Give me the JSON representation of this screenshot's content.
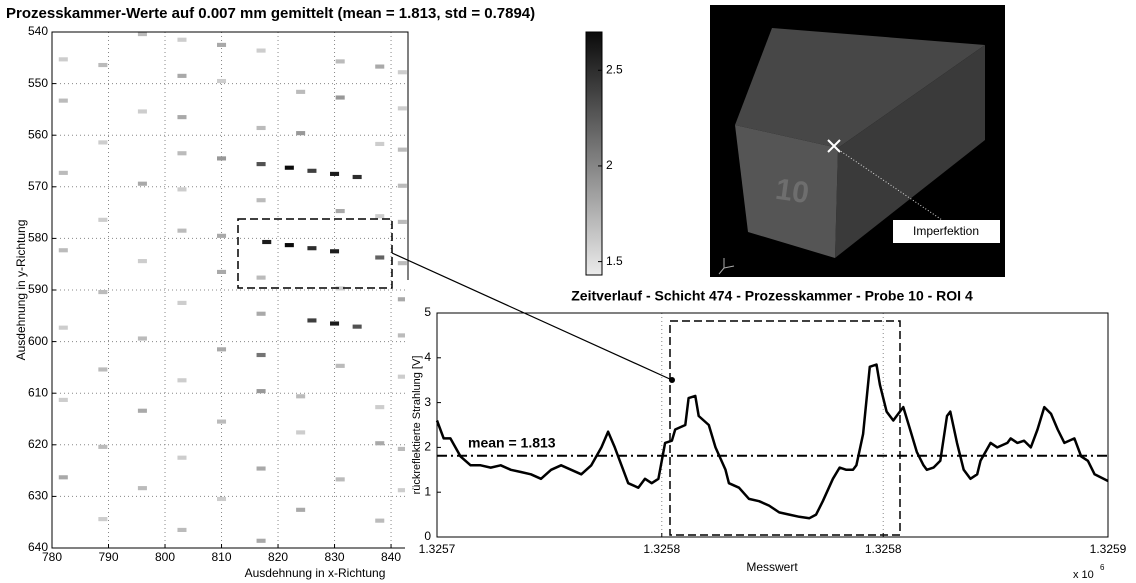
{
  "chart_data": [
    {
      "type": "heatmap",
      "title": "Prozesskammer-Werte auf 0.007 mm gemittelt (mean = 1.813, std = 0.7894)",
      "x_label": "Ausdehnung in x-Richtung",
      "y_label": "Ausdehnung in y-Richtung",
      "xlim": [
        780,
        843
      ],
      "xticks": [
        780,
        790,
        800,
        810,
        820,
        830,
        840
      ],
      "ylim": [
        540,
        640
      ],
      "yticks": [
        540,
        550,
        560,
        570,
        580,
        590,
        600,
        610,
        620,
        630,
        640
      ],
      "y_reversed": true,
      "grid": true,
      "clim": [
        1.43,
        2.7
      ],
      "colorbar_ticks": [
        1.5,
        2,
        2.5
      ],
      "x": [
        796,
        803,
        810,
        817,
        831,
        838,
        842,
        782,
        789,
        803,
        810,
        824,
        831,
        842,
        782,
        796,
        803,
        817,
        824,
        838,
        842,
        789,
        803,
        810,
        817,
        822,
        826,
        830,
        834,
        842,
        782,
        796,
        803,
        817,
        831,
        838,
        842,
        789,
        803,
        810,
        818,
        822,
        826,
        830,
        838,
        842,
        782,
        796,
        810,
        817,
        831,
        842,
        789,
        803,
        817,
        826,
        830,
        834,
        842,
        782,
        796,
        810,
        817,
        831,
        842,
        789,
        803,
        817,
        824,
        838,
        782,
        796,
        810,
        824,
        838,
        842,
        789,
        803,
        817,
        831,
        842,
        782,
        796,
        810,
        824,
        838,
        789,
        803,
        817
      ],
      "y": [
        540.4,
        541.5,
        542.5,
        543.6,
        545.7,
        546.7,
        547.8,
        545.3,
        546.4,
        548.5,
        549.5,
        551.6,
        552.7,
        554.8,
        553.3,
        555.4,
        556.5,
        558.6,
        559.6,
        561.7,
        562.8,
        561.4,
        563.5,
        564.5,
        565.6,
        566.3,
        566.9,
        567.5,
        568.1,
        569.8,
        567.3,
        569.4,
        570.5,
        572.6,
        574.7,
        575.7,
        576.8,
        576.4,
        578.5,
        579.5,
        580.7,
        581.3,
        581.9,
        582.5,
        583.7,
        584.8,
        582.3,
        584.4,
        586.5,
        587.6,
        589.7,
        591.8,
        590.4,
        592.5,
        594.6,
        595.9,
        596.5,
        597.1,
        598.8,
        597.3,
        599.4,
        601.5,
        602.6,
        604.7,
        606.8,
        605.4,
        607.5,
        609.6,
        610.6,
        612.7,
        611.3,
        613.4,
        615.5,
        617.6,
        619.7,
        620.8,
        620.4,
        622.5,
        624.6,
        626.7,
        628.8,
        626.3,
        628.4,
        630.5,
        632.6,
        634.7,
        634.4,
        636.5,
        638.6
      ],
      "values": [
        1.7,
        1.6,
        1.8,
        1.6,
        1.7,
        1.8,
        1.6,
        1.6,
        1.7,
        1.8,
        1.6,
        1.7,
        1.9,
        1.6,
        1.7,
        1.6,
        1.8,
        1.7,
        1.9,
        1.6,
        1.7,
        1.6,
        1.7,
        1.9,
        2.3,
        2.7,
        2.4,
        2.6,
        2.5,
        1.7,
        1.7,
        1.8,
        1.6,
        1.7,
        1.8,
        1.6,
        1.7,
        1.6,
        1.7,
        1.8,
        2.6,
        2.7,
        2.5,
        2.6,
        2.2,
        1.7,
        1.7,
        1.6,
        1.8,
        1.7,
        1.6,
        1.8,
        1.7,
        1.6,
        1.8,
        2.4,
        2.6,
        2.3,
        1.7,
        1.6,
        1.7,
        1.8,
        2.1,
        1.7,
        1.6,
        1.7,
        1.6,
        1.9,
        1.7,
        1.6,
        1.6,
        1.8,
        1.7,
        1.6,
        1.8,
        1.7,
        1.7,
        1.6,
        1.8,
        1.7,
        1.6,
        1.8,
        1.7,
        1.6,
        1.8,
        1.7,
        1.6,
        1.7,
        1.8
      ]
    },
    {
      "type": "line",
      "title": "Zeitverlauf - Schicht 474 - Prozesskammer - Probe 10 - ROI 4",
      "x_label": "Messwert",
      "y_label": "rückreflektierte Strahlung [V]",
      "x_exponent": {
        "base": "x 10",
        "power": "6"
      },
      "xlim": [
        1325700,
        1325900
      ],
      "xticks": [
        {
          "value": 1325700,
          "label": "1.3257"
        },
        {
          "value": 1325767,
          "label": "1.3258"
        },
        {
          "value": 1325833,
          "label": "1.3258"
        },
        {
          "value": 1325900,
          "label": "1.3259"
        }
      ],
      "ylim": [
        0,
        5
      ],
      "yticks": [
        0,
        1,
        2,
        3,
        4,
        5
      ],
      "xgrid": true,
      "color": "#000000",
      "mean": 1.813,
      "mean_label": "mean = 1.813",
      "x": [
        1325700,
        1325702,
        1325704,
        1325707,
        1325710,
        1325713,
        1325716,
        1325719,
        1325722,
        1325725,
        1325728,
        1325731,
        1325734,
        1325737,
        1325740,
        1325743,
        1325746,
        1325749,
        1325751,
        1325753,
        1325755,
        1325757,
        1325760,
        1325762,
        1325764,
        1325766,
        1325768,
        1325770,
        1325771,
        1325774,
        1325775,
        1325777,
        1325778,
        1325781,
        1325783,
        1325786,
        1325787,
        1325790,
        1325793,
        1325796,
        1325799,
        1325802,
        1325805,
        1325808,
        1325811,
        1325813,
        1325815,
        1325818,
        1325820,
        1325822,
        1325824,
        1325825,
        1325827,
        1325829,
        1325831,
        1325832,
        1325834,
        1325836,
        1325837,
        1325839,
        1325841,
        1325843,
        1325845,
        1325846,
        1325848,
        1325850,
        1325852,
        1325853,
        1325855,
        1325857,
        1325859,
        1325861,
        1325862,
        1325865,
        1325867,
        1325870,
        1325871,
        1325873,
        1325875,
        1325877,
        1325879,
        1325881,
        1325883,
        1325885,
        1325887,
        1325890,
        1325892,
        1325894,
        1325896,
        1325900
      ],
      "values": [
        2.6,
        2.2,
        2.2,
        1.8,
        1.6,
        1.6,
        1.55,
        1.6,
        1.5,
        1.45,
        1.4,
        1.3,
        1.5,
        1.6,
        1.5,
        1.4,
        1.6,
        2.0,
        2.35,
        2.0,
        1.6,
        1.2,
        1.1,
        1.3,
        1.2,
        1.3,
        2.1,
        2.15,
        2.4,
        2.5,
        3.1,
        3.15,
        2.7,
        2.5,
        2.0,
        1.5,
        1.2,
        1.1,
        0.85,
        0.8,
        0.7,
        0.55,
        0.5,
        0.45,
        0.42,
        0.5,
        0.8,
        1.3,
        1.55,
        1.5,
        1.5,
        1.6,
        2.3,
        3.8,
        3.85,
        3.4,
        2.8,
        2.6,
        2.7,
        2.9,
        2.4,
        1.9,
        1.6,
        1.5,
        1.55,
        1.7,
        2.7,
        2.8,
        2.1,
        1.5,
        1.3,
        1.4,
        1.7,
        2.1,
        2.0,
        2.1,
        2.2,
        2.1,
        2.15,
        2.0,
        2.4,
        2.9,
        2.75,
        2.4,
        2.1,
        2.2,
        1.8,
        1.7,
        1.4,
        1.25
      ]
    }
  ],
  "render": {
    "label": "10",
    "annotation": "Imperfektion"
  }
}
